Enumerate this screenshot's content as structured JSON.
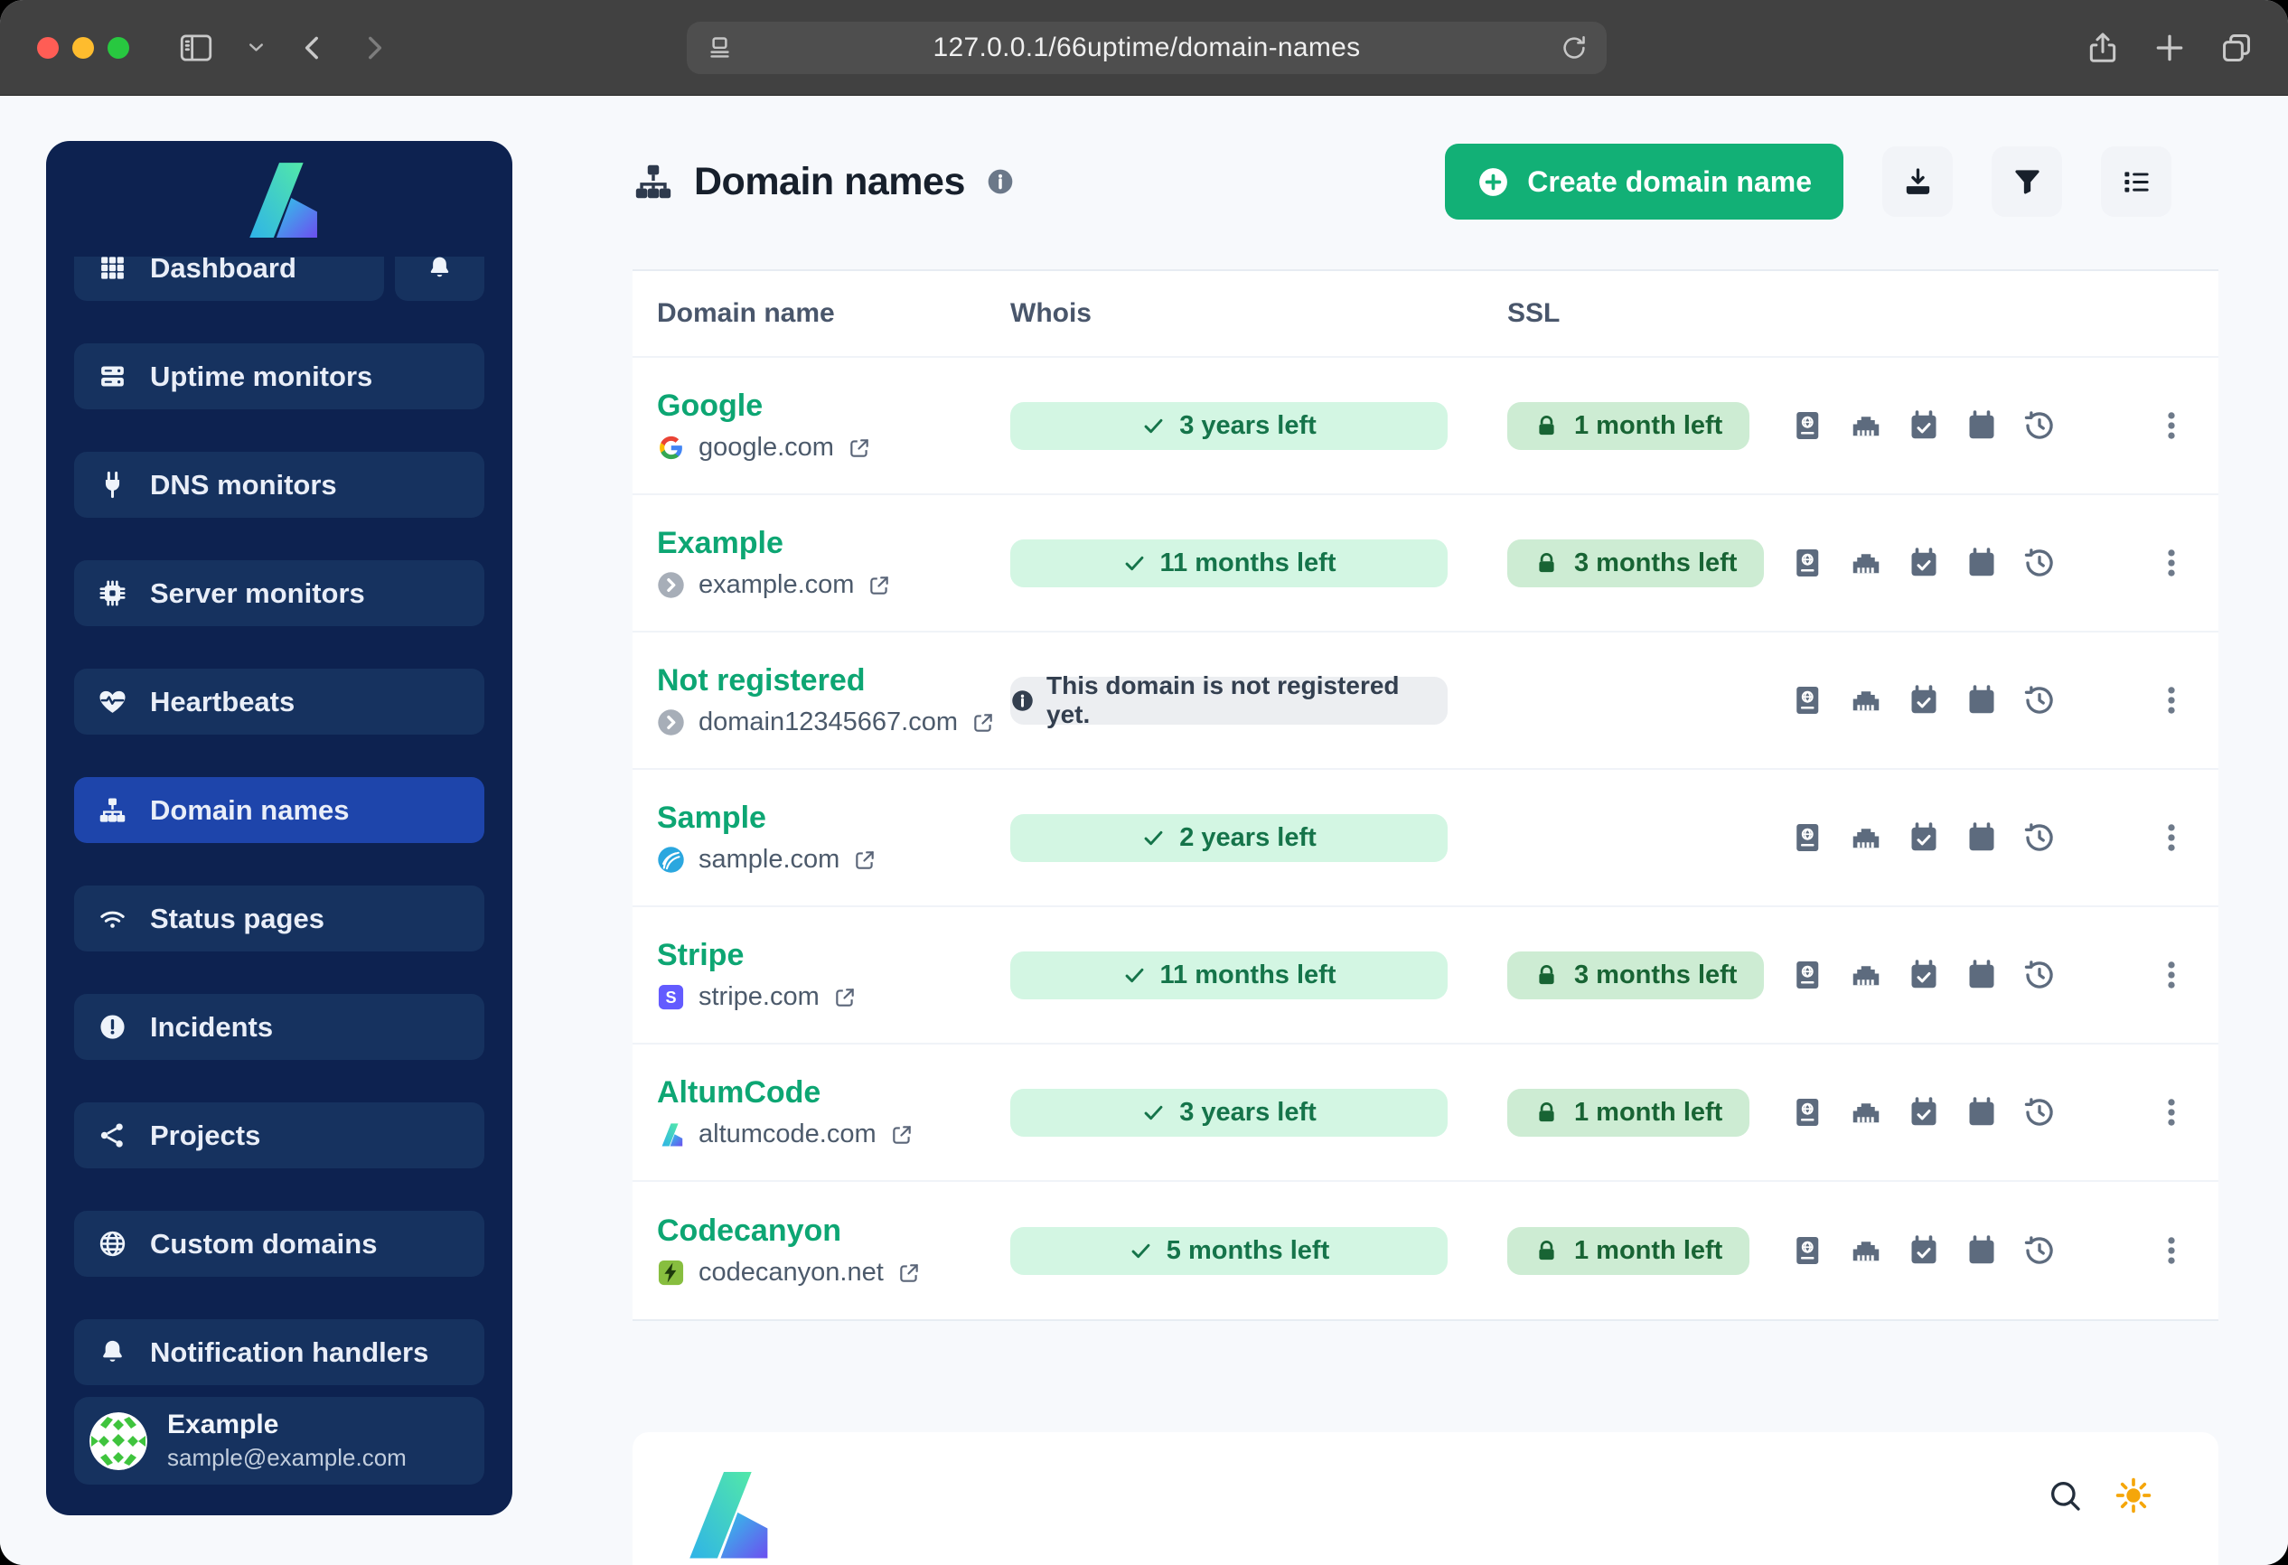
{
  "browser": {
    "url": "127.0.0.1/66uptime/domain-names",
    "icons": [
      "sidebar-toggle-icon",
      "chevron-down-icon",
      "back-icon",
      "forward-icon",
      "reader-icon",
      "reload-icon",
      "share-icon",
      "new-tab-icon",
      "tabs-icon"
    ]
  },
  "sidebar": {
    "items": [
      {
        "label": "Dashboard",
        "icon": "grid-icon",
        "active": false,
        "with_bell": true
      },
      {
        "label": "Uptime monitors",
        "icon": "server-icon",
        "active": false
      },
      {
        "label": "DNS monitors",
        "icon": "plug-icon",
        "active": false
      },
      {
        "label": "Server monitors",
        "icon": "cpu-icon",
        "active": false
      },
      {
        "label": "Heartbeats",
        "icon": "heart-pulse-icon",
        "active": false
      },
      {
        "label": "Domain names",
        "icon": "sitemap-icon",
        "active": true
      },
      {
        "label": "Status pages",
        "icon": "wifi-icon",
        "active": false
      },
      {
        "label": "Incidents",
        "icon": "alert-icon",
        "active": false
      },
      {
        "label": "Projects",
        "icon": "share-nodes-icon",
        "active": false
      },
      {
        "label": "Custom domains",
        "icon": "globe-icon",
        "active": false
      },
      {
        "label": "Notification handlers",
        "icon": "bell-icon",
        "active": false
      }
    ],
    "user": {
      "name": "Example",
      "email": "sample@example.com"
    }
  },
  "header": {
    "title": "Domain names",
    "create_button": "Create domain name",
    "toolbar_icons": [
      "download-icon",
      "filter-icon",
      "list-icon"
    ]
  },
  "table": {
    "columns": [
      "Domain name",
      "Whois",
      "SSL"
    ],
    "row_actions": [
      "whois-icon",
      "ethernet-icon",
      "calendar-check-icon",
      "calendar-icon",
      "history-icon"
    ],
    "rows": [
      {
        "name": "Google",
        "domain": "google.com",
        "favicon": "google-favicon",
        "whois": {
          "text": "3 years left",
          "type": "ok"
        },
        "ssl": {
          "text": "1 month left"
        }
      },
      {
        "name": "Example",
        "domain": "example.com",
        "favicon": "chevron-favicon",
        "whois": {
          "text": "11 months left",
          "type": "ok"
        },
        "ssl": {
          "text": "3 months left"
        }
      },
      {
        "name": "Not registered",
        "domain": "domain12345667.com",
        "favicon": "chevron-favicon",
        "whois": {
          "text": "This domain is not registered yet.",
          "type": "info"
        },
        "ssl": null
      },
      {
        "name": "Sample",
        "domain": "sample.com",
        "favicon": "wave-favicon",
        "whois": {
          "text": "2 years left",
          "type": "ok"
        },
        "ssl": null
      },
      {
        "name": "Stripe",
        "domain": "stripe.com",
        "favicon": "stripe-favicon",
        "whois": {
          "text": "11 months left",
          "type": "ok"
        },
        "ssl": {
          "text": "3 months left"
        }
      },
      {
        "name": "AltumCode",
        "domain": "altumcode.com",
        "favicon": "altumcode-favicon",
        "whois": {
          "text": "3 years left",
          "type": "ok"
        },
        "ssl": {
          "text": "1 month left"
        }
      },
      {
        "name": "Codecanyon",
        "domain": "codecanyon.net",
        "favicon": "codecanyon-favicon",
        "whois": {
          "text": "5 months left",
          "type": "ok"
        },
        "ssl": {
          "text": "1 month left"
        }
      }
    ]
  },
  "footer": {
    "icons": [
      "search-icon",
      "sun-icon"
    ]
  },
  "colors": {
    "accent_green": "#12b076",
    "link_green": "#0da673",
    "whois_ok_bg": "#d3f6e3",
    "whois_ok_text": "#15744a",
    "ssl_bg": "#cdecd3",
    "ssl_text": "#186434",
    "info_bg": "#eceef1",
    "info_text": "#333f4f",
    "sidebar_bg": "#0d2250",
    "sidebar_item_bg": "#16325f",
    "sidebar_active_bg": "#1e45ab",
    "amber": "#f5a60a"
  }
}
